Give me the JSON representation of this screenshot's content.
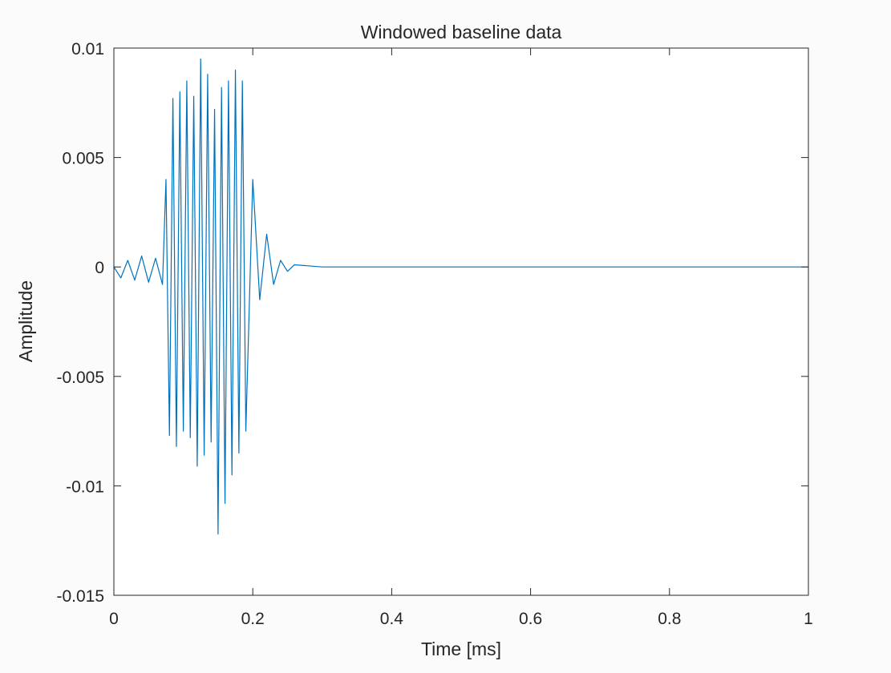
{
  "chart_data": {
    "type": "line",
    "title": "Windowed baseline data",
    "xlabel": "Time [ms]",
    "ylabel": "Amplitude",
    "xlim": [
      0,
      1
    ],
    "ylim": [
      -0.015,
      0.01
    ],
    "xticks": [
      0,
      0.2,
      0.4,
      0.6,
      0.8,
      1
    ],
    "xtick_labels": [
      "0",
      "0.2",
      "0.4",
      "0.6",
      "0.8",
      "1"
    ],
    "yticks": [
      -0.015,
      -0.01,
      -0.005,
      0,
      0.005,
      0.01
    ],
    "ytick_labels": [
      "-0.015",
      "-0.01",
      "-0.005",
      "0",
      "0.005",
      "0.01"
    ],
    "grid": false,
    "series_color": "#0072bd",
    "series": [
      {
        "x": [
          0,
          0.01,
          0.02,
          0.03,
          0.04,
          0.05,
          0.06,
          0.07,
          0.075,
          0.08,
          0.085,
          0.09,
          0.095,
          0.1,
          0.105,
          0.11,
          0.115,
          0.12,
          0.125,
          0.13,
          0.135,
          0.14,
          0.145,
          0.15,
          0.155,
          0.16,
          0.165,
          0.17,
          0.175,
          0.18,
          0.185,
          0.19,
          0.2,
          0.21,
          0.22,
          0.23,
          0.24,
          0.25,
          0.26,
          0.3,
          0.5,
          0.7,
          0.9,
          1.0
        ],
        "values": [
          0,
          -0.0005,
          0.0003,
          -0.0006,
          0.0005,
          -0.0007,
          0.0004,
          -0.0008,
          0.004,
          -0.0077,
          0.0077,
          -0.0082,
          0.008,
          -0.0075,
          0.0085,
          -0.0078,
          0.0078,
          -0.0091,
          0.0095,
          -0.0086,
          0.0088,
          -0.008,
          0.0072,
          -0.0122,
          0.0082,
          -0.0108,
          0.0085,
          -0.0095,
          0.009,
          -0.0085,
          0.0085,
          -0.0075,
          0.004,
          -0.0015,
          0.0015,
          -0.0008,
          0.0003,
          -0.0002,
          0.0001,
          0,
          0,
          0,
          0,
          0
        ]
      }
    ]
  }
}
